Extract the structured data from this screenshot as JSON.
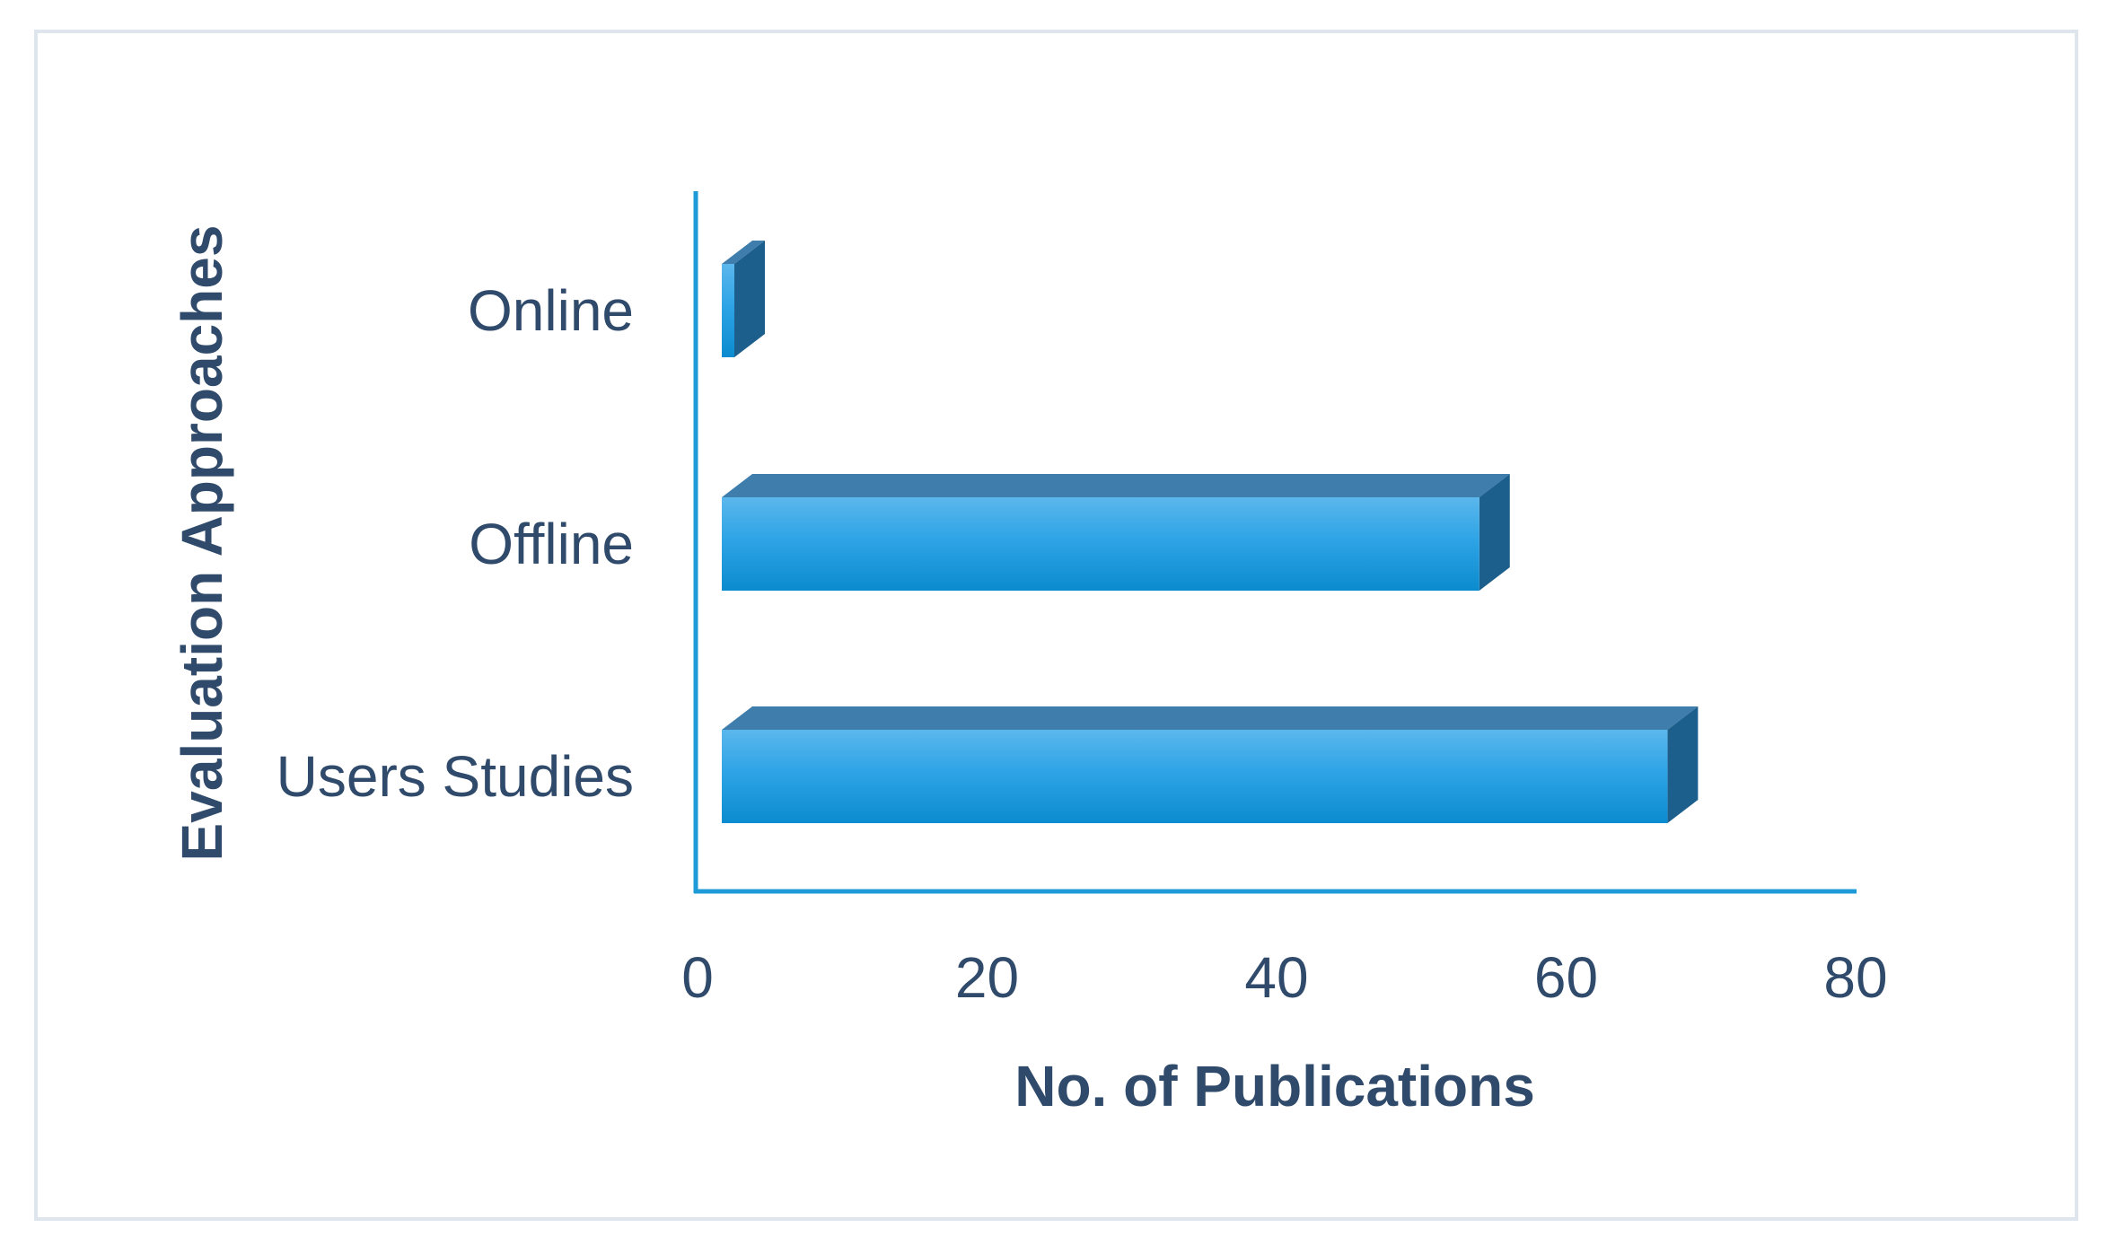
{
  "chart_data": {
    "type": "bar",
    "orientation": "horizontal",
    "style": "3d",
    "categories": [
      "Online",
      "Offline",
      "Users Studies"
    ],
    "values": [
      1,
      54,
      67
    ],
    "xlabel": "No. of Publications",
    "ylabel": "Evaluation Approaches",
    "xlim": [
      0,
      80
    ],
    "xticks": [
      "0",
      "20",
      "40",
      "60",
      "80"
    ],
    "grid": false,
    "legend": "none",
    "colors": {
      "bar_front_top": "#4db0ea",
      "bar_front_bottom": "#0a8fd4",
      "bar_top_face": "#3f7eac",
      "bar_side_face": "#1c5f8c",
      "axis_line": "#1e9bd7",
      "text": "#2f4a6a",
      "frame_border": "#dfe5ec"
    }
  }
}
